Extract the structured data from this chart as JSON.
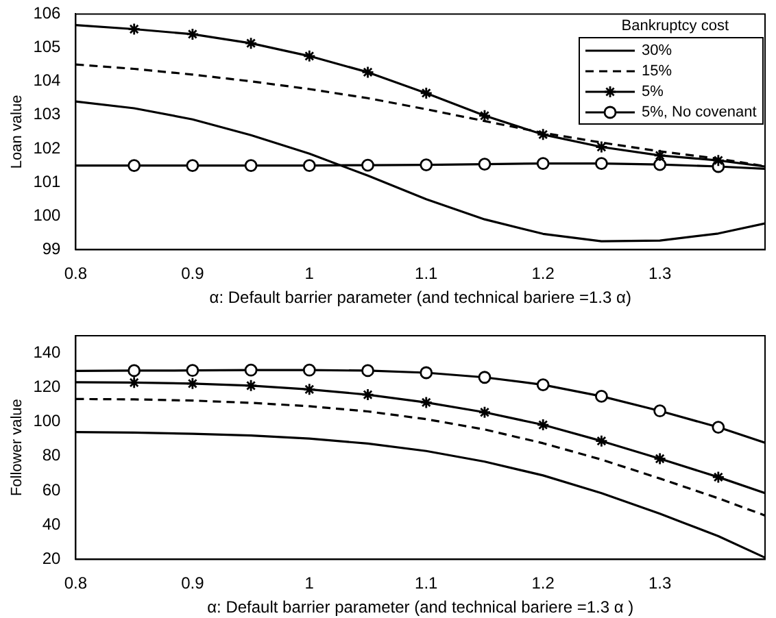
{
  "chart_data": [
    {
      "type": "line",
      "ylabel": "Loan value",
      "xlabel": "α: Default barrier parameter (and technical bariere =1.3 α)",
      "legend_title": "Bankruptcy cost",
      "legend": "top right",
      "grid": false,
      "x": [
        0.8,
        0.85,
        0.9,
        0.95,
        1.0,
        1.05,
        1.1,
        1.15,
        1.2,
        1.25,
        1.3,
        1.35,
        1.39
      ],
      "xlim": [
        0.8,
        1.39
      ],
      "xticks": [
        0.8,
        0.9,
        {
          "value": 1,
          "label": "1"
        },
        1.1,
        1.2,
        1.3
      ],
      "ylim": [
        99,
        106
      ],
      "yticks": [
        99,
        100,
        101,
        102,
        103,
        104,
        105,
        106
      ],
      "series": [
        {
          "name": "30%",
          "color": "#000000",
          "line_style": "solid",
          "marker": "none",
          "values": [
            103.4,
            103.2,
            102.87,
            102.4,
            101.85,
            101.2,
            100.5,
            99.9,
            99.47,
            99.25,
            99.27,
            99.48,
            99.78
          ]
        },
        {
          "name": "15%",
          "color": "#000000",
          "line_style": "dashed",
          "marker": "none",
          "values": [
            104.5,
            104.37,
            104.2,
            104.0,
            103.77,
            103.5,
            103.17,
            102.82,
            102.47,
            102.18,
            101.92,
            101.7,
            101.48
          ]
        },
        {
          "name": "5%",
          "color": "#000000",
          "line_style": "solid",
          "marker": "cross",
          "values": [
            105.67,
            105.55,
            105.4,
            105.13,
            104.75,
            104.27,
            103.65,
            102.98,
            102.42,
            102.05,
            101.8,
            101.65,
            101.47
          ]
        },
        {
          "name": "5%, No covenant",
          "color": "#000000",
          "line_style": "solid",
          "marker": "circle",
          "values": [
            101.5,
            101.5,
            101.5,
            101.5,
            101.5,
            101.51,
            101.52,
            101.54,
            101.56,
            101.56,
            101.53,
            101.47,
            101.4
          ]
        }
      ]
    },
    {
      "type": "line",
      "ylabel": "Follower value",
      "xlabel": "α: Default barrier parameter (and technical bariere =1.3 α )",
      "grid": false,
      "x": [
        0.8,
        0.85,
        0.9,
        0.95,
        1.0,
        1.05,
        1.1,
        1.15,
        1.2,
        1.25,
        1.3,
        1.35,
        1.39
      ],
      "xlim": [
        0.8,
        1.39
      ],
      "xticks": [
        0.8,
        0.9,
        {
          "value": 1,
          "label": "1"
        },
        1.1,
        1.2,
        1.3
      ],
      "ylim": [
        20,
        150
      ],
      "yticks": [
        20,
        40,
        60,
        80,
        100,
        120,
        140
      ],
      "series": [
        {
          "color": "#000000",
          "line_style": "solid",
          "marker": "none",
          "values": [
            94,
            93.7,
            93,
            92,
            90.2,
            87.3,
            83,
            76.8,
            68.8,
            58.5,
            46.5,
            33.5,
            21
          ]
        },
        {
          "color": "#000000",
          "line_style": "dashed",
          "marker": "none",
          "values": [
            113.2,
            113,
            112.3,
            111,
            109,
            106,
            101.5,
            95.5,
            87.5,
            78,
            67,
            55.5,
            45.5
          ]
        },
        {
          "color": "#000000",
          "line_style": "solid",
          "marker": "cross",
          "values": [
            123,
            122.8,
            122.2,
            121,
            118.8,
            115.7,
            111.2,
            105.5,
            98.2,
            88.8,
            78.5,
            67.8,
            58.5
          ]
        },
        {
          "color": "#000000",
          "line_style": "solid",
          "marker": "circle",
          "values": [
            129.5,
            129.7,
            129.8,
            130,
            130,
            129.7,
            128.5,
            125.8,
            121.5,
            114.8,
            106.3,
            96.8,
            87.8
          ]
        }
      ]
    }
  ]
}
